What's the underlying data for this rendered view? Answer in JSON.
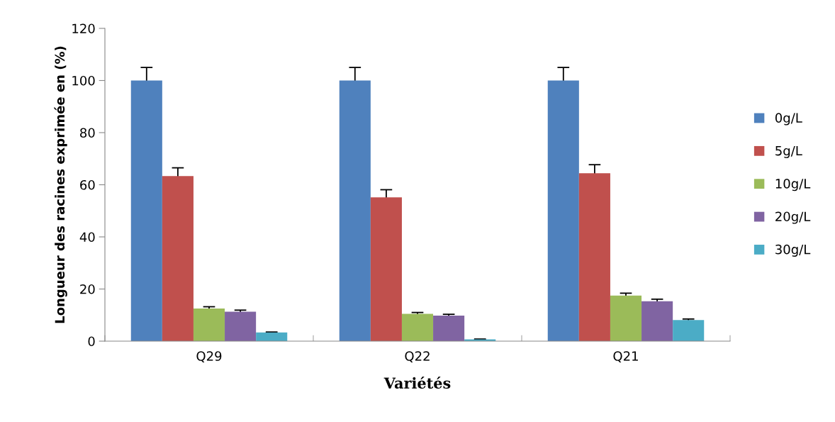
{
  "chart_data": {
    "type": "bar",
    "xlabel": "Variétés",
    "ylabel": "Longueur des racines exprimée en (%)",
    "categories": [
      "Q29",
      "Q22",
      "Q21"
    ],
    "series": [
      {
        "name": "0g/L",
        "color": "#4f81bd",
        "values": [
          100,
          100,
          100
        ],
        "errors": [
          5,
          5,
          5
        ]
      },
      {
        "name": "5g/L",
        "color": "#c0504d",
        "values": [
          63.3,
          55.2,
          64.4
        ],
        "errors": [
          3.2,
          2.9,
          3.3
        ]
      },
      {
        "name": "10g/L",
        "color": "#9bbb59",
        "values": [
          12.5,
          10.5,
          17.5
        ],
        "errors": [
          0.7,
          0.5,
          0.9
        ]
      },
      {
        "name": "20g/L",
        "color": "#8064a2",
        "values": [
          11.3,
          9.8,
          15.3
        ],
        "errors": [
          0.6,
          0.5,
          0.8
        ]
      },
      {
        "name": "30g/L",
        "color": "#4bacc6",
        "values": [
          3.3,
          0.7,
          8.1
        ],
        "errors": [
          0.2,
          0.1,
          0.4
        ]
      }
    ],
    "ylim": [
      0,
      120
    ],
    "yticks": [
      0,
      20,
      40,
      60,
      80,
      100,
      120
    ],
    "grid": false,
    "legend": "right"
  }
}
